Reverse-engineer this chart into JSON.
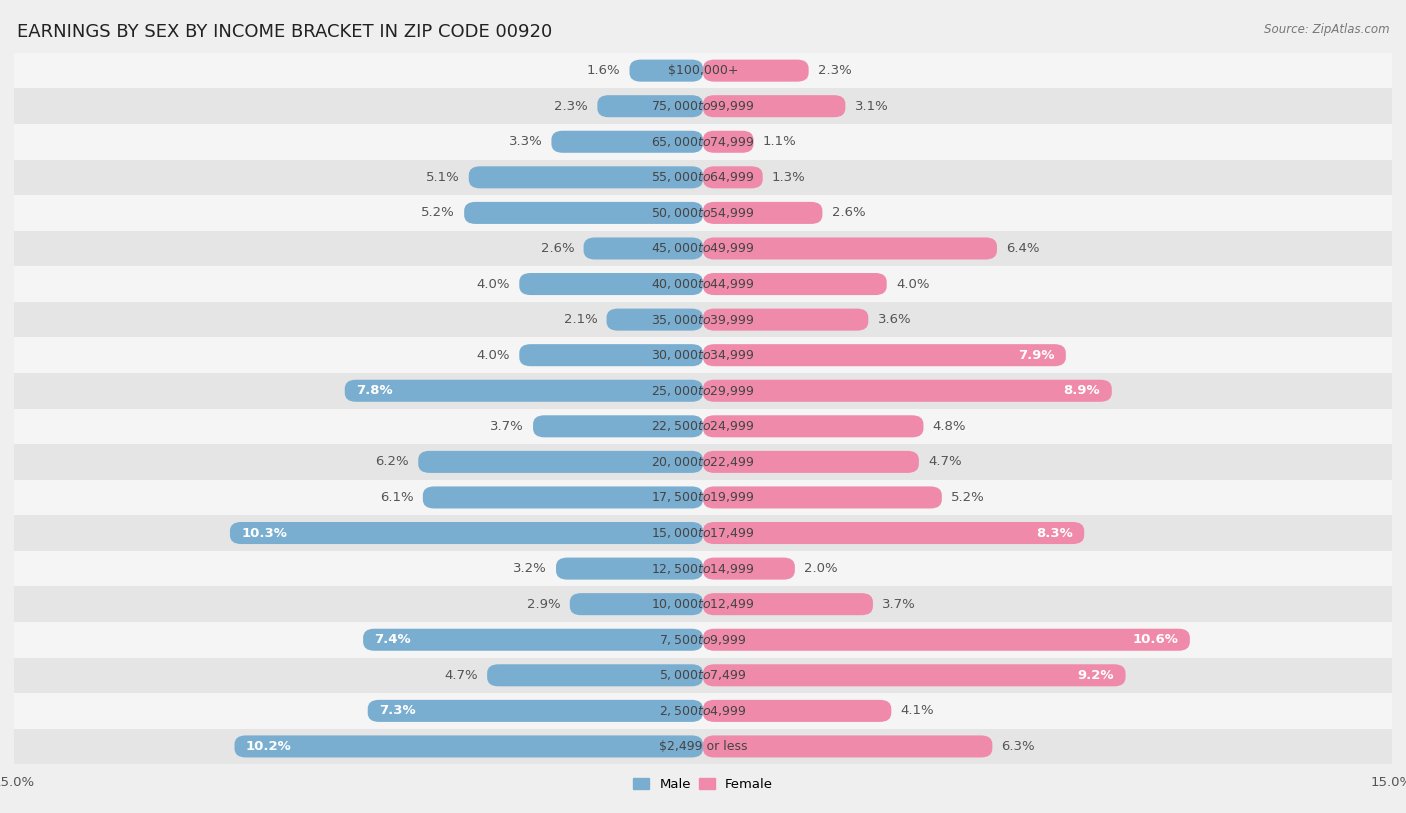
{
  "title": "EARNINGS BY SEX BY INCOME BRACKET IN ZIP CODE 00920",
  "source": "Source: ZipAtlas.com",
  "categories": [
    "$2,499 or less",
    "$2,500 to $4,999",
    "$5,000 to $7,499",
    "$7,500 to $9,999",
    "$10,000 to $12,499",
    "$12,500 to $14,999",
    "$15,000 to $17,499",
    "$17,500 to $19,999",
    "$20,000 to $22,499",
    "$22,500 to $24,999",
    "$25,000 to $29,999",
    "$30,000 to $34,999",
    "$35,000 to $39,999",
    "$40,000 to $44,999",
    "$45,000 to $49,999",
    "$50,000 to $54,999",
    "$55,000 to $64,999",
    "$65,000 to $74,999",
    "$75,000 to $99,999",
    "$100,000+"
  ],
  "male_values": [
    10.2,
    7.3,
    4.7,
    7.4,
    2.9,
    3.2,
    10.3,
    6.1,
    6.2,
    3.7,
    7.8,
    4.0,
    2.1,
    4.0,
    2.6,
    5.2,
    5.1,
    3.3,
    2.3,
    1.6
  ],
  "female_values": [
    6.3,
    4.1,
    9.2,
    10.6,
    3.7,
    2.0,
    8.3,
    5.2,
    4.7,
    4.8,
    8.9,
    7.9,
    3.6,
    4.0,
    6.4,
    2.6,
    1.3,
    1.1,
    3.1,
    2.3
  ],
  "male_color": "#7aaed0",
  "female_color": "#f08aaa",
  "bg_color": "#efefef",
  "row_colors": [
    "#f5f5f5",
    "#e5e5e5"
  ],
  "axis_limit": 15.0,
  "male_inside_threshold": 6.5,
  "female_inside_threshold": 6.5,
  "title_fontsize": 13,
  "label_fontsize": 9.5,
  "category_fontsize": 9,
  "tick_fontsize": 9.5
}
